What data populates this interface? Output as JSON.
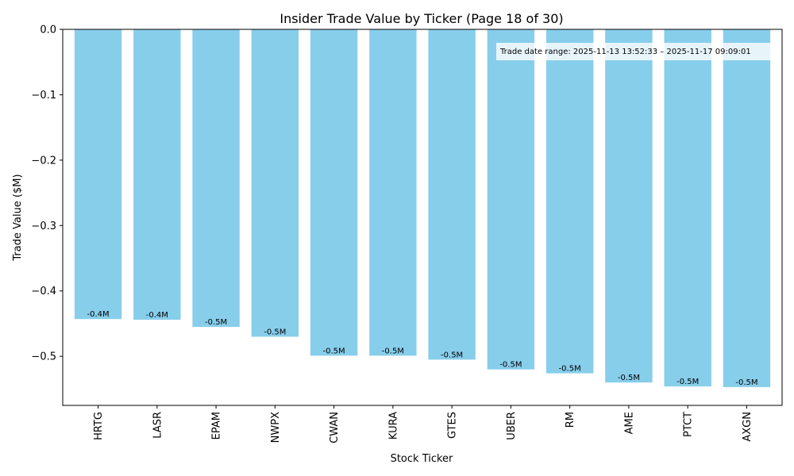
{
  "chart_data": {
    "type": "bar",
    "title": "Insider Trade Value by Ticker (Page 18 of 30)",
    "xlabel": "Stock Ticker",
    "ylabel": "Trade Value ($M)",
    "categories": [
      "HRTG",
      "LASR",
      "EPAM",
      "NWPX",
      "CWAN",
      "KURA",
      "GTES",
      "UBER",
      "RM",
      "AME",
      "PTCT",
      "AXGN"
    ],
    "values": [
      -0.443,
      -0.444,
      -0.455,
      -0.47,
      -0.499,
      -0.499,
      -0.505,
      -0.52,
      -0.526,
      -0.54,
      -0.546,
      -0.547
    ],
    "data_labels": [
      "-0.4M",
      "-0.4M",
      "-0.5M",
      "-0.5M",
      "-0.5M",
      "-0.5M",
      "-0.5M",
      "-0.5M",
      "-0.5M",
      "-0.5M",
      "-0.5M",
      "-0.5M"
    ],
    "ylim": [
      -0.575,
      0
    ],
    "yticks": [
      0,
      -0.1,
      -0.2,
      -0.3,
      -0.4,
      -0.5
    ],
    "ytick_labels": [
      "0.0",
      "−0.1",
      "−0.2",
      "−0.3",
      "−0.4",
      "−0.5"
    ],
    "bar_color": "#87CEEB",
    "grid": false,
    "annotation": "Trade date range: 2025-11-13 13:52:33 – 2025-11-17 09:09:01",
    "annotation_placement": "top-right"
  }
}
